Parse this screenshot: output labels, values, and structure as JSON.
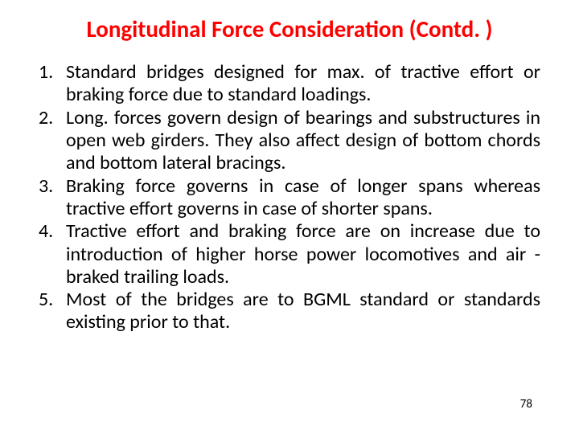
{
  "title": {
    "text": "Longitudinal Force Consideration (Contd. )",
    "color": "#ff0000",
    "fontsize": 29,
    "font_family": "Calibri, Arial, sans-serif"
  },
  "body": {
    "color": "#000000",
    "fontsize": 24,
    "line_height": 1.18,
    "items": [
      "Standard bridges designed for max. of tractive effort or braking force due to standard loadings.",
      "Long. forces govern design of bearings and substructures in open web girders. They also affect design of bottom chords and bottom lateral bracings.",
      "Braking force governs in case of longer spans whereas tractive effort governs in case of shorter spans.",
      "Tractive effort and braking force are on increase due to introduction of higher horse power locomotives and air -braked trailing loads.",
      "Most of the bridges are to BGML standard or standards existing prior to that."
    ]
  },
  "page_number": {
    "text": "78",
    "color": "#000000",
    "fontsize": 15
  },
  "background_color": "#ffffff"
}
